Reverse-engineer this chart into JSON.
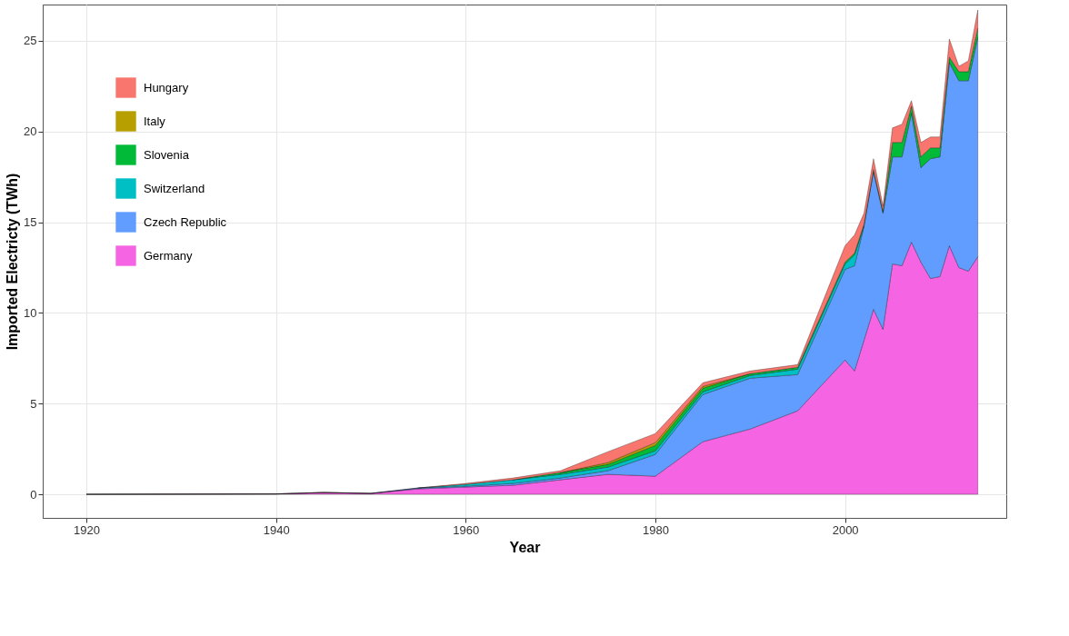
{
  "chart_data": {
    "type": "area",
    "stacked": true,
    "xlabel": "Year",
    "ylabel": "Imported Electricty (TWh)",
    "x": [
      1920,
      1940,
      1945,
      1950,
      1955,
      1960,
      1965,
      1970,
      1975,
      1980,
      1985,
      1990,
      1995,
      2000,
      2001,
      2002,
      2003,
      2004,
      2005,
      2006,
      2007,
      2008,
      2009,
      2010,
      2011,
      2012,
      2013,
      2014
    ],
    "series": [
      {
        "name": "Germany",
        "color": "#f564e3",
        "values": [
          0,
          0.02,
          0.1,
          0.05,
          0.3,
          0.4,
          0.5,
          0.8,
          1.1,
          1.0,
          2.9,
          3.6,
          4.6,
          7.4,
          6.8,
          8.5,
          10.2,
          9.1,
          12.7,
          12.6,
          13.9,
          12.8,
          11.9,
          12.0,
          13.7,
          12.5,
          12.3,
          13.1
        ]
      },
      {
        "name": "Czech Republic",
        "color": "#619cff",
        "values": [
          0,
          0,
          0,
          0,
          0.05,
          0.05,
          0.1,
          0.1,
          0.2,
          1.2,
          2.6,
          2.8,
          2.0,
          5.0,
          5.8,
          6.3,
          7.6,
          6.4,
          5.9,
          6.0,
          7.1,
          5.2,
          6.6,
          6.6,
          10.1,
          10.3,
          10.5,
          12.1
        ]
      },
      {
        "name": "Switzerland",
        "color": "#00bfc4",
        "values": [
          null,
          null,
          null,
          null,
          0,
          0.1,
          0.2,
          0.2,
          0.2,
          0.2,
          0.15,
          0.15,
          0.3,
          0.3,
          0.6,
          0,
          null,
          null,
          null,
          null,
          null,
          null,
          null,
          null,
          null,
          null,
          null,
          null
        ]
      },
      {
        "name": "Slovenia",
        "color": "#00ba38",
        "values": [
          null,
          null,
          null,
          null,
          null,
          null,
          0,
          0.1,
          0.15,
          0.3,
          0.2,
          0.1,
          0.1,
          0.1,
          0.1,
          0.1,
          0.1,
          0.1,
          0.8,
          0.8,
          0.4,
          0.6,
          0.6,
          0.5,
          0.3,
          0.5,
          0.5,
          0.5
        ]
      },
      {
        "name": "Italy",
        "color": "#b79f00",
        "values": [
          null,
          null,
          null,
          null,
          null,
          null,
          null,
          0,
          0.1,
          0.15,
          0.1,
          0,
          null,
          null,
          null,
          null,
          null,
          null,
          null,
          null,
          null,
          null,
          null,
          null,
          null,
          null,
          null,
          null
        ]
      },
      {
        "name": "Hungary",
        "color": "#f8766d",
        "values": [
          0,
          0,
          0,
          0,
          0,
          0.05,
          0.1,
          0.1,
          0.6,
          0.5,
          0.2,
          0.15,
          0.15,
          0.9,
          1.0,
          0.6,
          0.6,
          0.3,
          0.8,
          1.0,
          0.3,
          0.8,
          0.6,
          0.6,
          1.0,
          0.3,
          0.6,
          1.0
        ]
      }
    ],
    "xlim": [
      1915.4,
      2017
    ],
    "xticks": [
      1920,
      1940,
      1960,
      1980,
      2000
    ],
    "ylim": [
      -1.3,
      27
    ],
    "yticks": [
      0,
      5,
      10,
      15,
      20,
      25
    ],
    "grid": true,
    "legend": "top left"
  }
}
